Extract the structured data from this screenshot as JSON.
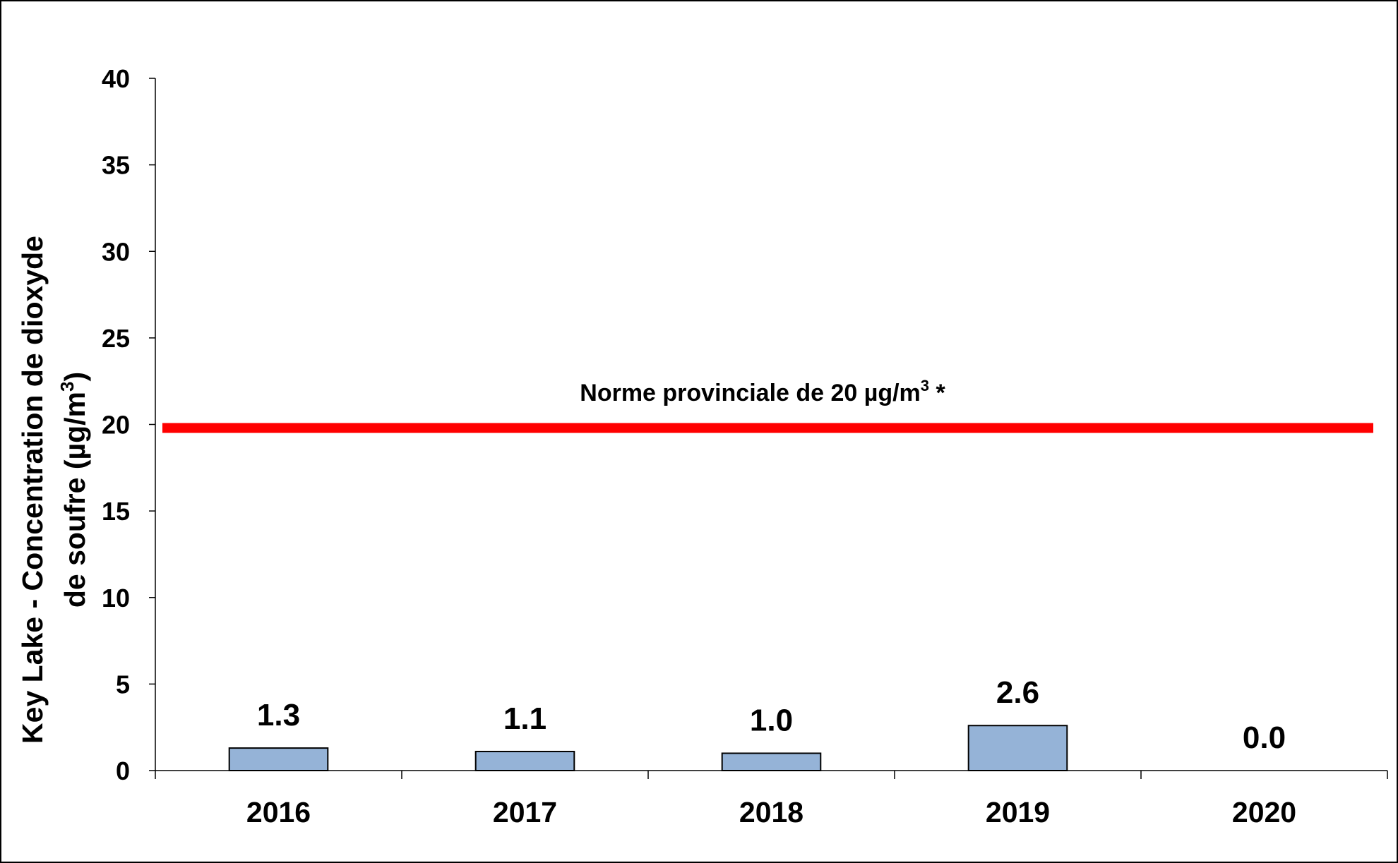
{
  "chart_data": {
    "type": "bar",
    "ylabel": "Key Lake - Concentration de dioxyde de soufre (µg/m³)",
    "ylabel_lines": [
      {
        "text": "Key Lake - Concentration de dioxyde",
        "sup": ""
      },
      {
        "text": "de soufre (µg/m",
        "sup": "3",
        "after": ")"
      }
    ],
    "categories": [
      "2016",
      "2017",
      "2018",
      "2019",
      "2020"
    ],
    "values": [
      1.3,
      1.1,
      1.0,
      2.6,
      0.0
    ],
    "data_labels": [
      "1.3",
      "1.1",
      "1.0",
      "2.6",
      "0.0"
    ],
    "ylim": [
      0,
      40
    ],
    "yticks": [
      0,
      5,
      10,
      15,
      20,
      25,
      30,
      35,
      40
    ],
    "grid": false,
    "legend": "none",
    "reference_line": {
      "value": 20,
      "label_text": "Norme provinciale de 20 µg/m",
      "label_sup": "3",
      "label_after": " *",
      "color": "#ff0000"
    },
    "bar_color": "#95b3d7",
    "bar_edge_color": "#000000"
  }
}
